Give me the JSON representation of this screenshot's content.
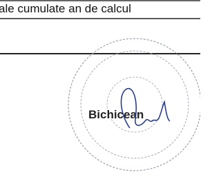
{
  "header": {
    "text": "ale cumulate an de calcul"
  },
  "signatory": {
    "name": "Bichicean"
  }
}
